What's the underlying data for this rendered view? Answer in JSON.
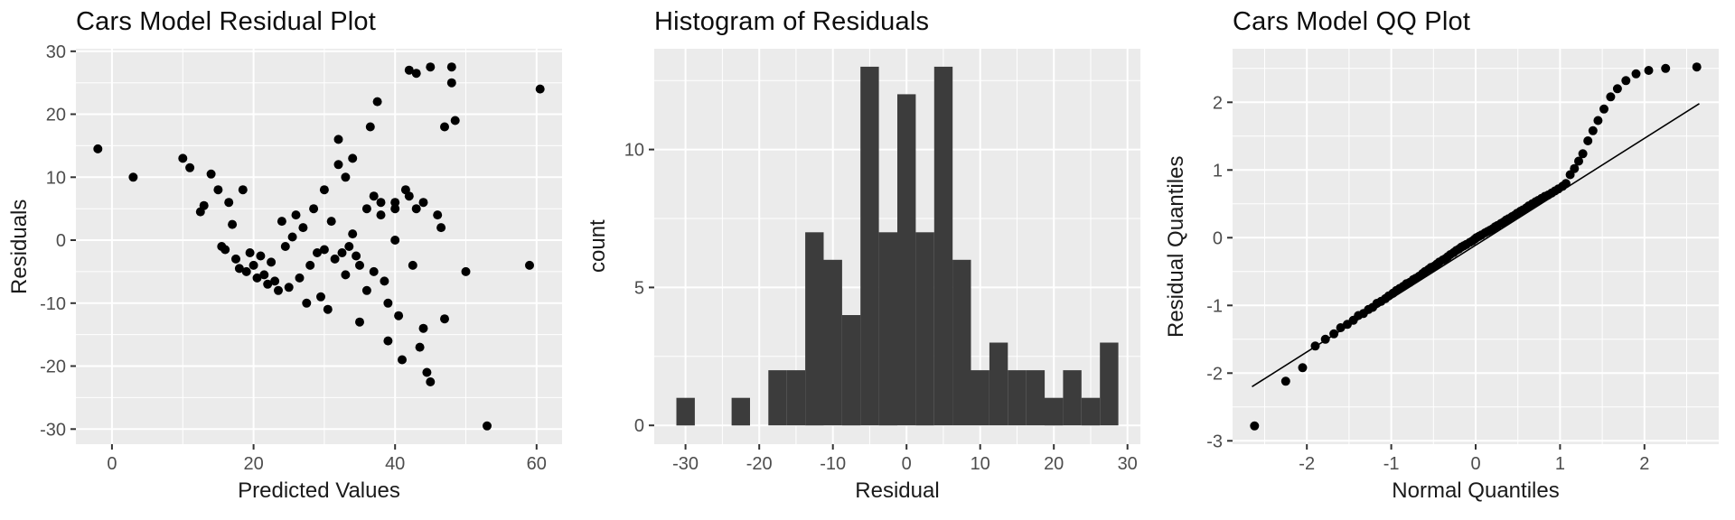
{
  "style": {
    "page_bg": "#FFFFFF",
    "panel_bg": "#EBEBEB",
    "grid": "#FFFFFF",
    "tick_text": "#4D4D4D",
    "tick_mark": "#333333",
    "point_color": "#000000",
    "line_color": "#000000"
  },
  "chart_data": [
    {
      "type": "scatter",
      "title": "Cars Model Residual Plot",
      "xlabel": "Predicted Values",
      "ylabel": "Residuals",
      "xlim": [
        -5.1,
        63.6
      ],
      "ylim": [
        -32.4,
        30.4
      ],
      "xticks": [
        0,
        20,
        40,
        60
      ],
      "yticks": [
        -30,
        -20,
        -10,
        0,
        10,
        20,
        30
      ],
      "points": [
        [
          -2,
          14.5
        ],
        [
          3,
          10
        ],
        [
          10,
          13
        ],
        [
          11,
          11.5
        ],
        [
          12.5,
          4.5
        ],
        [
          13,
          5.5
        ],
        [
          14,
          10.5
        ],
        [
          15,
          8
        ],
        [
          15.5,
          -1
        ],
        [
          16,
          -1.5
        ],
        [
          16.5,
          6
        ],
        [
          17,
          2.5
        ],
        [
          17.5,
          -3
        ],
        [
          18,
          -4.5
        ],
        [
          18.5,
          8
        ],
        [
          19,
          -5
        ],
        [
          19.5,
          -2
        ],
        [
          20,
          -4
        ],
        [
          20.5,
          -6
        ],
        [
          21,
          -2.5
        ],
        [
          21.5,
          -5.5
        ],
        [
          22,
          -7
        ],
        [
          22.5,
          -3.5
        ],
        [
          23,
          -6.5
        ],
        [
          23.5,
          -8
        ],
        [
          24,
          3
        ],
        [
          24.5,
          -1
        ],
        [
          25,
          -7.5
        ],
        [
          25.5,
          0.5
        ],
        [
          26,
          4
        ],
        [
          26.5,
          -6
        ],
        [
          27,
          2
        ],
        [
          27.5,
          -10
        ],
        [
          28,
          -4
        ],
        [
          28.5,
          5
        ],
        [
          29,
          -2
        ],
        [
          29.5,
          -9
        ],
        [
          30,
          8
        ],
        [
          30,
          -1.5
        ],
        [
          30.5,
          -11
        ],
        [
          31,
          3
        ],
        [
          31.5,
          -3
        ],
        [
          32,
          16
        ],
        [
          32,
          12
        ],
        [
          32.5,
          -2
        ],
        [
          33,
          10
        ],
        [
          33,
          -5.5
        ],
        [
          33.5,
          -1
        ],
        [
          34,
          13
        ],
        [
          34,
          1
        ],
        [
          34.5,
          -2.5
        ],
        [
          35,
          -4
        ],
        [
          35,
          -13
        ],
        [
          36,
          5
        ],
        [
          36,
          -8
        ],
        [
          36.5,
          18
        ],
        [
          37,
          7
        ],
        [
          37,
          -5
        ],
        [
          37.5,
          22
        ],
        [
          38,
          6
        ],
        [
          38,
          4
        ],
        [
          38.5,
          -6.5
        ],
        [
          39,
          -10
        ],
        [
          39,
          -16
        ],
        [
          40,
          6
        ],
        [
          40,
          5
        ],
        [
          40,
          0
        ],
        [
          40.5,
          -12
        ],
        [
          41,
          -19
        ],
        [
          41.5,
          8
        ],
        [
          42,
          27
        ],
        [
          42,
          7
        ],
        [
          42.5,
          -4
        ],
        [
          43,
          26.5
        ],
        [
          43,
          5
        ],
        [
          43.5,
          -17
        ],
        [
          44,
          6
        ],
        [
          44,
          -14
        ],
        [
          44.5,
          -21
        ],
        [
          45,
          27.5
        ],
        [
          45,
          -22.5
        ],
        [
          46,
          4
        ],
        [
          46.5,
          2
        ],
        [
          47,
          18
        ],
        [
          47,
          -12.5
        ],
        [
          48,
          27.5
        ],
        [
          48,
          25
        ],
        [
          48.5,
          19
        ],
        [
          50,
          -5
        ],
        [
          53,
          -29.5
        ],
        [
          59,
          -4
        ],
        [
          60.5,
          24
        ]
      ]
    },
    {
      "type": "histogram",
      "title": "Histogram of Residuals",
      "xlabel": "Residual",
      "ylabel": "count",
      "xlim": [
        -34.25,
        31.75
      ],
      "ylim": [
        -0.68,
        13.65
      ],
      "xticks": [
        -30,
        -20,
        -10,
        0,
        10,
        20,
        30
      ],
      "yticks": [
        0,
        5,
        10
      ],
      "binwidth": 2.5,
      "bar_color": "#3C3C3C",
      "bin_centers": [
        -30,
        -22.5,
        -17.5,
        -15,
        -12.5,
        -10,
        -7.5,
        -5,
        -2.5,
        0,
        2.5,
        5,
        7.5,
        10,
        12.5,
        15,
        17.5,
        20,
        22.5,
        25,
        27.5
      ],
      "counts": [
        1,
        1,
        2,
        2,
        7,
        6,
        4,
        13,
        7,
        12,
        7,
        13,
        6,
        2,
        3,
        2,
        2,
        1,
        2,
        1,
        3
      ]
    },
    {
      "type": "qq",
      "title": "Cars Model QQ Plot",
      "xlabel": "Normal Quantiles",
      "ylabel": "Residual Quantiles",
      "xlim": [
        -2.88,
        2.88
      ],
      "ylim": [
        -3.05,
        2.79
      ],
      "xticks": [
        -2,
        -1,
        0,
        1,
        2
      ],
      "yticks": [
        -3,
        -2,
        -1,
        0,
        1,
        2
      ],
      "line": {
        "x1": -2.65,
        "y1": -2.2,
        "x2": 2.65,
        "y2": 1.98
      },
      "points": [
        [
          -2.62,
          -2.78
        ],
        [
          -2.25,
          -2.12
        ],
        [
          -2.05,
          -1.92
        ],
        [
          -1.9,
          -1.6
        ],
        [
          -1.78,
          -1.5
        ],
        [
          -1.68,
          -1.42
        ],
        [
          -1.6,
          -1.33
        ],
        [
          -1.52,
          -1.28
        ],
        [
          -1.45,
          -1.22
        ],
        [
          -1.39,
          -1.15
        ],
        [
          -1.33,
          -1.12
        ],
        [
          -1.27,
          -1.06
        ],
        [
          -1.22,
          -1.03
        ],
        [
          -1.17,
          -0.97
        ],
        [
          -1.12,
          -0.94
        ],
        [
          -1.07,
          -0.9
        ],
        [
          -1.03,
          -0.86
        ],
        [
          -0.98,
          -0.82
        ],
        [
          -0.94,
          -0.78
        ],
        [
          -0.9,
          -0.75
        ],
        [
          -0.86,
          -0.72
        ],
        [
          -0.82,
          -0.68
        ],
        [
          -0.78,
          -0.66
        ],
        [
          -0.74,
          -0.62
        ],
        [
          -0.71,
          -0.6
        ],
        [
          -0.67,
          -0.57
        ],
        [
          -0.63,
          -0.53
        ],
        [
          -0.6,
          -0.5
        ],
        [
          -0.56,
          -0.47
        ],
        [
          -0.53,
          -0.44
        ],
        [
          -0.49,
          -0.42
        ],
        [
          -0.46,
          -0.39
        ],
        [
          -0.43,
          -0.36
        ],
        [
          -0.39,
          -0.33
        ],
        [
          -0.36,
          -0.31
        ],
        [
          -0.33,
          -0.28
        ],
        [
          -0.3,
          -0.25
        ],
        [
          -0.26,
          -0.22
        ],
        [
          -0.23,
          -0.19
        ],
        [
          -0.2,
          -0.17
        ],
        [
          -0.17,
          -0.14
        ],
        [
          -0.14,
          -0.12
        ],
        [
          -0.11,
          -0.1
        ],
        [
          -0.07,
          -0.07
        ],
        [
          -0.04,
          -0.05
        ],
        [
          -0.01,
          -0.02
        ],
        [
          0.01,
          0
        ],
        [
          0.04,
          0.02
        ],
        [
          0.07,
          0.04
        ],
        [
          0.11,
          0.07
        ],
        [
          0.14,
          0.09
        ],
        [
          0.17,
          0.11
        ],
        [
          0.2,
          0.13
        ],
        [
          0.23,
          0.16
        ],
        [
          0.26,
          0.18
        ],
        [
          0.3,
          0.21
        ],
        [
          0.33,
          0.23
        ],
        [
          0.36,
          0.26
        ],
        [
          0.39,
          0.28
        ],
        [
          0.43,
          0.31
        ],
        [
          0.46,
          0.33
        ],
        [
          0.49,
          0.36
        ],
        [
          0.53,
          0.39
        ],
        [
          0.56,
          0.41
        ],
        [
          0.6,
          0.44
        ],
        [
          0.63,
          0.47
        ],
        [
          0.67,
          0.5
        ],
        [
          0.71,
          0.53
        ],
        [
          0.74,
          0.55
        ],
        [
          0.78,
          0.58
        ],
        [
          0.82,
          0.61
        ],
        [
          0.86,
          0.63
        ],
        [
          0.9,
          0.66
        ],
        [
          0.94,
          0.69
        ],
        [
          0.98,
          0.72
        ],
        [
          1.03,
          0.76
        ],
        [
          1.07,
          0.8
        ],
        [
          1.12,
          0.93
        ],
        [
          1.17,
          1.02
        ],
        [
          1.22,
          1.13
        ],
        [
          1.27,
          1.24
        ],
        [
          1.33,
          1.43
        ],
        [
          1.39,
          1.58
        ],
        [
          1.45,
          1.73
        ],
        [
          1.52,
          1.9
        ],
        [
          1.6,
          2.08
        ],
        [
          1.68,
          2.2
        ],
        [
          1.78,
          2.32
        ],
        [
          1.9,
          2.42
        ],
        [
          2.05,
          2.47
        ],
        [
          2.25,
          2.5
        ],
        [
          2.62,
          2.52
        ]
      ]
    }
  ]
}
